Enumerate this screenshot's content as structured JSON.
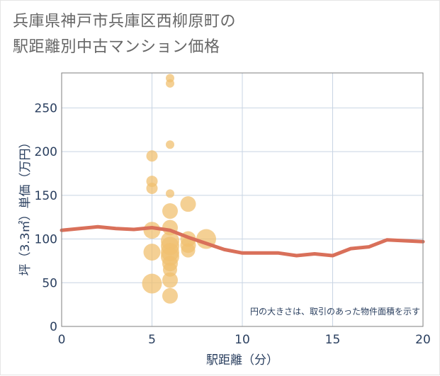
{
  "title_line1": "兵庫県神戸市兵庫区西柳原町の",
  "title_line2": "駅距離別中古マンション価格",
  "chart_data": {
    "type": "scatter",
    "xlabel": "駅距離（分）",
    "ylabel": "坪（3.3㎡）単価（万円）",
    "xlim": [
      0,
      20
    ],
    "ylim": [
      0,
      290
    ],
    "x_ticks": [
      0,
      5,
      10,
      15,
      20
    ],
    "y_ticks": [
      0,
      50,
      100,
      150,
      200,
      250
    ],
    "grid": true,
    "annotation": "円の大きさは、取引のあった物件面積を示す",
    "bubble_color": "#f0c070",
    "line_color": "#d9705a",
    "bubbles": [
      {
        "x": 5,
        "y": 195,
        "size": 8
      },
      {
        "x": 5,
        "y": 166,
        "size": 8
      },
      {
        "x": 5,
        "y": 158,
        "size": 8
      },
      {
        "x": 5,
        "y": 110,
        "size": 12
      },
      {
        "x": 5,
        "y": 85,
        "size": 12
      },
      {
        "x": 5,
        "y": 49,
        "size": 14
      },
      {
        "x": 6,
        "y": 284,
        "size": 6
      },
      {
        "x": 6,
        "y": 278,
        "size": 6
      },
      {
        "x": 6,
        "y": 208,
        "size": 6
      },
      {
        "x": 6,
        "y": 152,
        "size": 6
      },
      {
        "x": 6,
        "y": 132,
        "size": 11
      },
      {
        "x": 6,
        "y": 113,
        "size": 11
      },
      {
        "x": 6,
        "y": 98,
        "size": 13
      },
      {
        "x": 6,
        "y": 92,
        "size": 13
      },
      {
        "x": 6,
        "y": 85,
        "size": 13
      },
      {
        "x": 6,
        "y": 80,
        "size": 13
      },
      {
        "x": 6,
        "y": 72,
        "size": 11
      },
      {
        "x": 6,
        "y": 65,
        "size": 10
      },
      {
        "x": 6,
        "y": 53,
        "size": 11
      },
      {
        "x": 6,
        "y": 35,
        "size": 11
      },
      {
        "x": 7,
        "y": 140,
        "size": 11
      },
      {
        "x": 7,
        "y": 100,
        "size": 11
      },
      {
        "x": 7,
        "y": 93,
        "size": 11
      },
      {
        "x": 7,
        "y": 87,
        "size": 10
      },
      {
        "x": 8,
        "y": 100,
        "size": 14
      }
    ],
    "line": {
      "x": [
        0,
        1,
        2,
        3,
        4,
        5,
        6,
        7,
        8,
        9,
        10,
        11,
        12,
        13,
        14,
        15,
        16,
        17,
        18,
        19,
        20
      ],
      "y": [
        110,
        112,
        114,
        112,
        111,
        113,
        110,
        102,
        95,
        88,
        84,
        84,
        84,
        81,
        83,
        81,
        89,
        91,
        99,
        98,
        97
      ]
    }
  }
}
